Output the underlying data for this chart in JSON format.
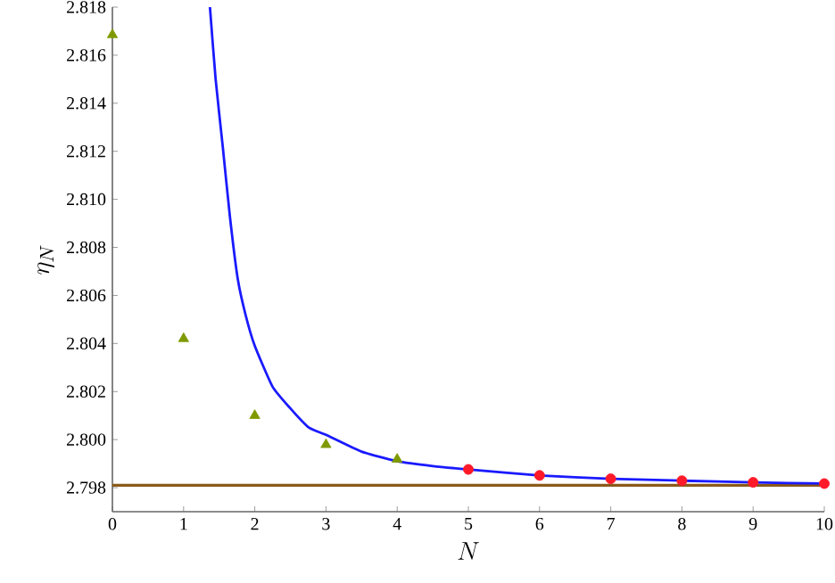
{
  "chart_data": {
    "type": "line",
    "xlabel": "N",
    "ylabel": "\\eta_N",
    "xlim": [
      0,
      10
    ],
    "ylim": [
      2.797,
      2.818
    ],
    "xticks": [
      0,
      1,
      2,
      3,
      4,
      5,
      6,
      7,
      8,
      9,
      10
    ],
    "yticks": [
      {
        "value": 2.798,
        "label": "2.798"
      },
      {
        "value": 2.8,
        "label": "2.800"
      },
      {
        "value": 2.802,
        "label": "2.802"
      },
      {
        "value": 2.804,
        "label": "2.804"
      },
      {
        "value": 2.806,
        "label": "2.806"
      },
      {
        "value": 2.808,
        "label": "2.808"
      },
      {
        "value": 2.81,
        "label": "2.810"
      },
      {
        "value": 2.812,
        "label": "2.812"
      },
      {
        "value": 2.814,
        "label": "2.814"
      },
      {
        "value": 2.816,
        "label": "2.816"
      },
      {
        "value": 2.818,
        "label": "2.818"
      }
    ],
    "series": [
      {
        "color": "#1a1aff",
        "marker": "none",
        "x": [
          1.37,
          1.45,
          1.55,
          1.65,
          1.76,
          1.87,
          2.0,
          2.25,
          2.5,
          2.76,
          3.0,
          3.5,
          4.0,
          4.5,
          5,
          6,
          7,
          8,
          9,
          10
        ],
        "values": [
          2.818,
          2.815,
          2.8122,
          2.8093,
          2.8067,
          2.8052,
          2.8039,
          2.8022,
          2.8013,
          2.8005,
          2.8002,
          2.7995,
          2.7991,
          2.7989,
          2.79876,
          2.79851,
          2.79837,
          2.79829,
          2.79822,
          2.79817
        ]
      },
      {
        "type": "scatter",
        "color": "#7f9a00",
        "marker": "triangle",
        "x": [
          0,
          1,
          2,
          3,
          4
        ],
        "values": [
          2.81685,
          2.8042,
          2.801,
          2.79979,
          2.79918
        ]
      },
      {
        "type": "scatter",
        "color": "#ff1a2a",
        "marker": "circle",
        "x": [
          5,
          6,
          7,
          8,
          9,
          10
        ],
        "values": [
          2.79876,
          2.79851,
          2.79837,
          2.79829,
          2.79822,
          2.79817
        ]
      }
    ],
    "ref_lines": [
      {
        "axis": "y",
        "value": 2.7981,
        "color": "#8b5a1a"
      }
    ]
  }
}
